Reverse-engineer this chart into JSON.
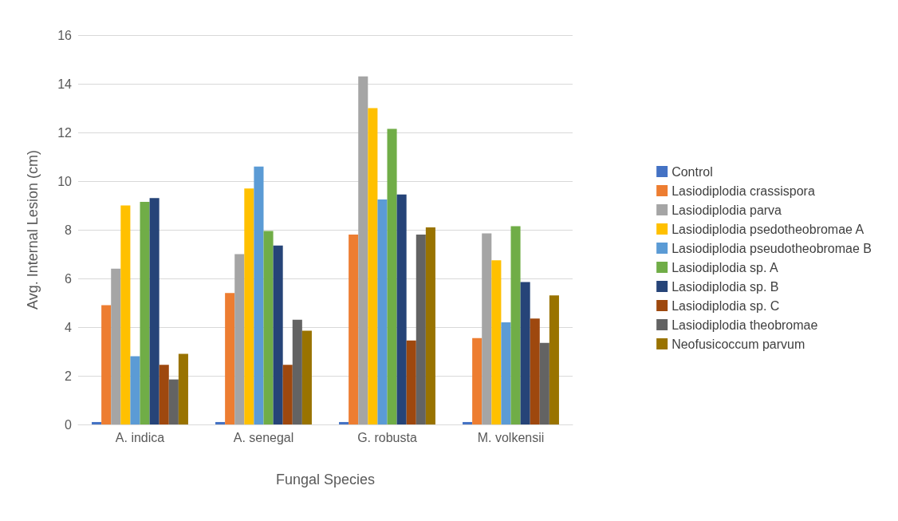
{
  "chart_data": {
    "type": "bar",
    "xlabel": "Fungal Species",
    "ylabel": "Avg. Internal Lesion (cm)",
    "categories": [
      "A. indica",
      "A. senegal",
      "G. robusta",
      "M. volkensii"
    ],
    "series": [
      {
        "name": "Control",
        "color": "#4472c4",
        "values": [
          0.1,
          0.1,
          0.1,
          0.1
        ]
      },
      {
        "name": "Lasiodiplodia crassispora",
        "color": "#ed7d31",
        "values": [
          4.9,
          5.4,
          7.8,
          3.55
        ]
      },
      {
        "name": "Lasiodiplodia parva",
        "color": "#a5a5a5",
        "values": [
          6.4,
          7.0,
          14.3,
          7.85
        ]
      },
      {
        "name": "Lasiodiplodia psedotheobromae A",
        "color": "#ffc000",
        "values": [
          9.0,
          9.7,
          13.0,
          6.75
        ]
      },
      {
        "name": "Lasiodiplodia pseudotheobromae B",
        "color": "#5b9bd5",
        "values": [
          2.8,
          10.6,
          9.25,
          4.2
        ]
      },
      {
        "name": "Lasiodiplodia sp. A",
        "color": "#70ad47",
        "values": [
          9.15,
          7.95,
          12.15,
          8.15
        ]
      },
      {
        "name": "Lasiodiplodia sp. B",
        "color": "#264478",
        "values": [
          9.3,
          7.35,
          9.45,
          5.85
        ]
      },
      {
        "name": "Lasiodiplodia sp. C",
        "color": "#9e480e",
        "values": [
          2.45,
          2.45,
          3.45,
          4.35
        ]
      },
      {
        "name": "Lasiodiplodia theobromae",
        "color": "#636363",
        "values": [
          1.85,
          4.3,
          7.8,
          3.35
        ]
      },
      {
        "name": "Neofusicoccum parvum",
        "color": "#997300",
        "values": [
          2.9,
          3.85,
          8.1,
          5.3
        ]
      }
    ],
    "ylim": [
      0,
      16
    ],
    "yticks": [
      0,
      2,
      4,
      6,
      8,
      10,
      12,
      14,
      16
    ],
    "grid": "y",
    "legend": "right"
  }
}
